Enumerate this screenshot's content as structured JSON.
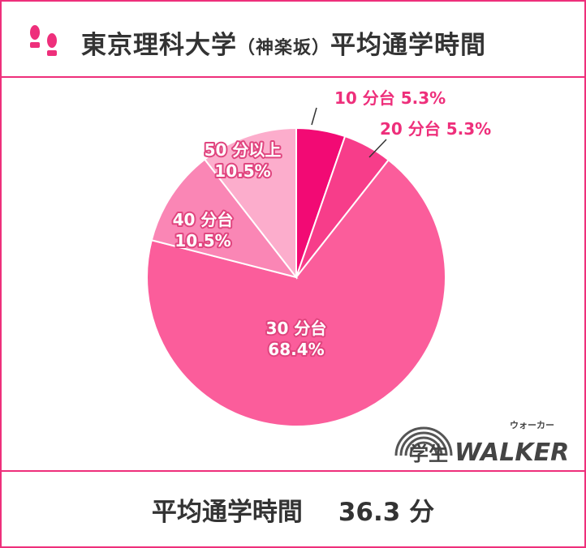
{
  "title": {
    "university": "東京理科大学",
    "open_paren": "（",
    "campus": "神楽坂",
    "close_paren": "）",
    "metric": "平均通学時間"
  },
  "footer": {
    "label": "平均通学時間",
    "value": "36.3 分"
  },
  "logo": {
    "main": "学生",
    "brand": "WALKER",
    "ruby": "ウォーカー"
  },
  "colors": {
    "accent": "#ee2f7b",
    "title_text": "#333333"
  },
  "chart_data": {
    "type": "pie",
    "title": "",
    "slices": [
      {
        "label": "10 分台",
        "pct_label": "5.3%",
        "value": 5.3,
        "color": "#f20a74"
      },
      {
        "label": "20 分台",
        "pct_label": "5.3%",
        "value": 5.3,
        "color": "#f73d8a"
      },
      {
        "label": "30 分台",
        "pct_label": "68.4%",
        "value": 68.4,
        "color": "#fb5d9b"
      },
      {
        "label": "40 分台",
        "pct_label": "10.5%",
        "value": 10.5,
        "color": "#fa86b5"
      },
      {
        "label": "50 分以上",
        "pct_label": "10.5%",
        "value": 10.5,
        "color": "#fcadcc"
      }
    ],
    "start_angle_deg": 0,
    "direction": "clockwise",
    "label_color_outside": "#ee2f7b",
    "label_color_inside": "#ffffff"
  }
}
